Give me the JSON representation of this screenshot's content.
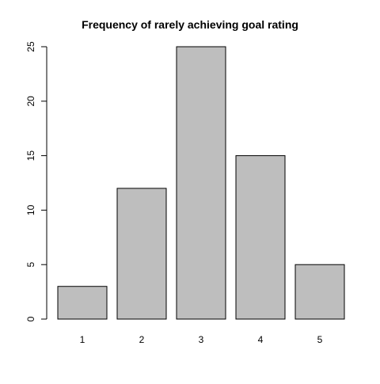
{
  "chart_data": {
    "type": "bar",
    "title": "Frequency of rarely achieving goal rating",
    "categories": [
      "1",
      "2",
      "3",
      "4",
      "5"
    ],
    "values": [
      3,
      12,
      25,
      15,
      5
    ],
    "ylim": [
      0,
      25
    ],
    "yticks": [
      0,
      5,
      10,
      15,
      20,
      25
    ],
    "xlabel": "",
    "ylabel": "",
    "grid": false,
    "legend": "none",
    "colors": {
      "bar_fill": "#bebebe",
      "bar_stroke": "#000000",
      "axis": "#000000",
      "text": "#000000"
    }
  }
}
